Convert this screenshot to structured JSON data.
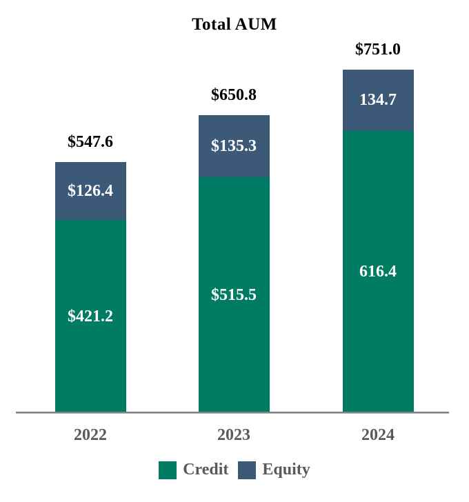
{
  "title": "Total AUM",
  "colors": {
    "credit": "#007C64",
    "equity": "#3C5A78",
    "axis_line": "#808080",
    "axis_label_text": "#595959",
    "total_label_text": "#000000",
    "segment_label_text": "#ffffff",
    "background": "#ffffff"
  },
  "legend": [
    {
      "label": "Credit",
      "color": "#007C64"
    },
    {
      "label": "Equity",
      "color": "#3C5A78"
    }
  ],
  "chart_data": {
    "type": "bar",
    "stacked": true,
    "title": "Total AUM",
    "categories": [
      "2022",
      "2023",
      "2024"
    ],
    "series": [
      {
        "name": "Credit",
        "color": "#007C64",
        "values": [
          421.2,
          515.5,
          616.4
        ],
        "labels": [
          "$421.2",
          "$515.5",
          "616.4"
        ]
      },
      {
        "name": "Equity",
        "color": "#3C5A78",
        "values": [
          126.4,
          135.3,
          134.7
        ],
        "labels": [
          "$126.4",
          "$135.3",
          "134.7"
        ]
      }
    ],
    "totals": [
      547.6,
      650.8,
      751.0
    ],
    "total_labels": [
      "$547.6",
      "$650.8",
      "$751.0"
    ],
    "xlabel": "",
    "ylabel": "",
    "ylim": [
      0,
      760
    ],
    "grid": false,
    "legend_position": "bottom"
  }
}
